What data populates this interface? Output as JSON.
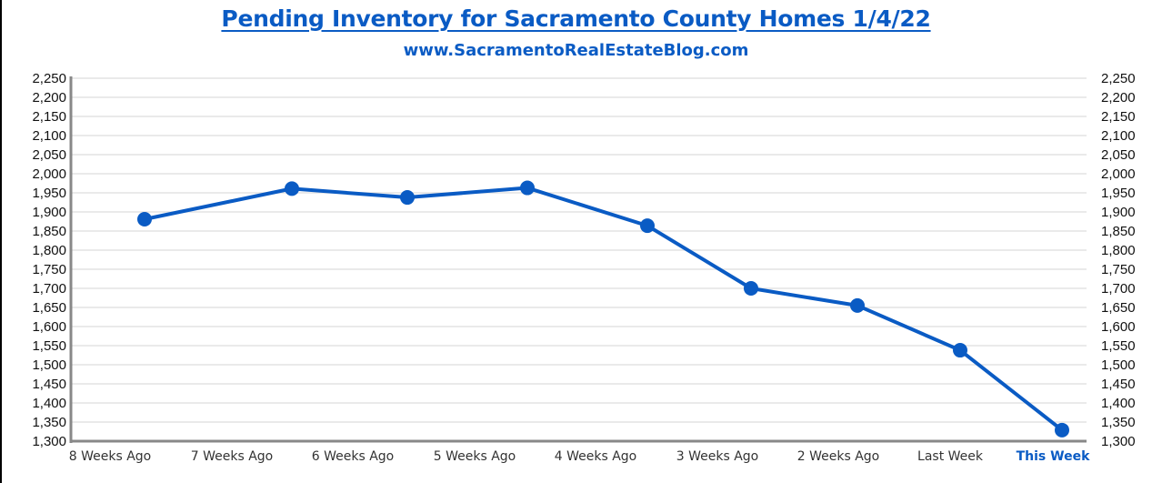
{
  "header": {
    "title": "Pending Inventory for Sacramento County Homes 1/4/22",
    "subtitle": "www.SacramentoRealEstateBlog.com"
  },
  "colors": {
    "accent": "#0a5bc4",
    "line": "#0a5bc4",
    "grid": "#e4e4e4",
    "axis": "#888888"
  },
  "chart_data": {
    "type": "line",
    "title": "Pending Inventory for Sacramento County Homes 1/4/22",
    "subtitle": "www.SacramentoRealEstateBlog.com",
    "xlabel": "",
    "ylabel": "",
    "categories": [
      "8 Weeks Ago",
      "7 Weeks Ago",
      "6 Weeks Ago",
      "5 Weeks Ago",
      "4 Weeks Ago",
      "3 Weeks Ago",
      "2 Weeks Ago",
      "Last Week",
      "This Week"
    ],
    "highlight_category": "This Week",
    "series": [
      {
        "name": "Pending Inventory",
        "values": [
          1881,
          1961,
          1938,
          1963,
          1864,
          1700,
          1655,
          1538,
          1329
        ]
      }
    ],
    "ylim": [
      1300,
      2250
    ],
    "yticks": [
      "2,250",
      "2,200",
      "2,150",
      "2,100",
      "2,050",
      "2,000",
      "1,950",
      "1,900",
      "1,850",
      "1,800",
      "1,750",
      "1,700",
      "1,650",
      "1,600",
      "1,550",
      "1,500",
      "1,450",
      "1,400",
      "1,350",
      "1,300"
    ],
    "ytick_values": [
      2250,
      2200,
      2150,
      2100,
      2050,
      2000,
      1950,
      1900,
      1850,
      1800,
      1750,
      1700,
      1650,
      1600,
      1550,
      1500,
      1450,
      1400,
      1350,
      1300
    ],
    "grid": true,
    "legend": "none",
    "secondary_yaxis": true
  }
}
